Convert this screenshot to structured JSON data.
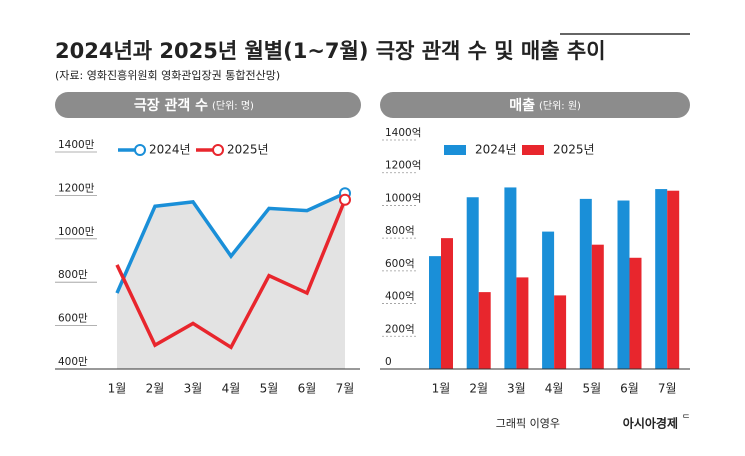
{
  "title": "2024년과 2025년 월별(1~7월) 극장 관객 수 및 매출 추이",
  "source": "(자료: 영화진흥위원회 영화관입장권 통합전산망)",
  "credit": "그래픽 이영우",
  "publisher": "아시아경제",
  "chart_data": [
    {
      "type": "line",
      "title": "극장 관객 수",
      "subtitle": "(단위: 명)",
      "categories": [
        "1월",
        "2월",
        "3월",
        "4월",
        "5월",
        "6월",
        "7월"
      ],
      "series": [
        {
          "name": "2024년",
          "color": "#1a8fd8",
          "values": [
            750,
            1150,
            1170,
            920,
            1140,
            1130,
            1210
          ]
        },
        {
          "name": "2025년",
          "color": "#e8262d",
          "values": [
            880,
            510,
            610,
            500,
            830,
            750,
            1180
          ]
        }
      ],
      "ylim": [
        400,
        1400
      ],
      "yticks": [
        {
          "value": 400,
          "label": "400만"
        },
        {
          "value": 600,
          "label": "600만"
        },
        {
          "value": 800,
          "label": "800만"
        },
        {
          "value": 1000,
          "label": "1000만"
        },
        {
          "value": 1200,
          "label": "1200만"
        },
        {
          "value": 1400,
          "label": "1400만"
        }
      ],
      "area_color": "#e3e3e3"
    },
    {
      "type": "bar",
      "title": "매출",
      "subtitle": "(단위: 원)",
      "categories": [
        "1월",
        "2월",
        "3월",
        "4월",
        "5월",
        "6월",
        "7월"
      ],
      "series": [
        {
          "name": "2024년",
          "color": "#1a8fd8",
          "values": [
            690,
            1050,
            1110,
            840,
            1040,
            1030,
            1100
          ]
        },
        {
          "name": "2025년",
          "color": "#e8262d",
          "values": [
            800,
            470,
            560,
            450,
            760,
            680,
            1090
          ]
        }
      ],
      "ylim": [
        0,
        1400
      ],
      "yticks": [
        0,
        {
          "value": 200,
          "label": "200억"
        },
        {
          "value": 400,
          "label": "400억"
        },
        {
          "value": 600,
          "label": "600억"
        },
        {
          "value": 800,
          "label": "800억"
        },
        {
          "value": 1000,
          "label": "1000억"
        },
        {
          "value": 1200,
          "label": "1200억"
        },
        {
          "value": 1400,
          "label": "1400억"
        }
      ]
    }
  ]
}
